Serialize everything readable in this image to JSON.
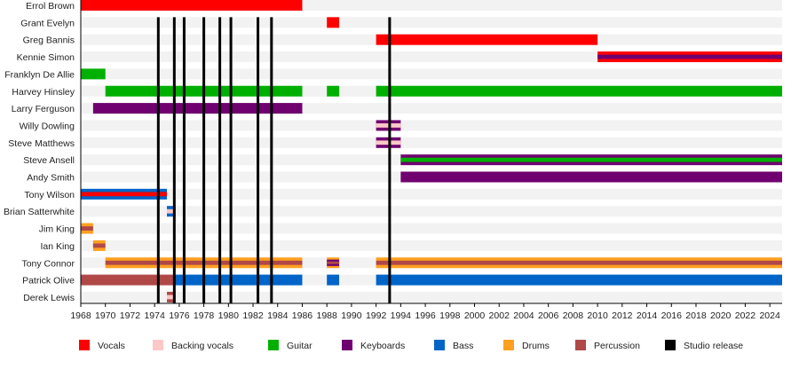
{
  "chart_data": {
    "type": "timeline",
    "xlim": [
      1968,
      2025
    ],
    "x_ticks": [
      1968,
      1970,
      1972,
      1974,
      1976,
      1978,
      1980,
      1982,
      1984,
      1986,
      1988,
      1990,
      1992,
      1994,
      1996,
      1998,
      2000,
      2002,
      2004,
      2006,
      2008,
      2010,
      2012,
      2014,
      2016,
      2018,
      2020,
      2022,
      2024
    ],
    "legend_position": "bottom",
    "roles": {
      "vocals": {
        "label": "Vocals",
        "color": "#ff0000"
      },
      "backing": {
        "label": "Backing vocals",
        "color": "#ffc8c8"
      },
      "guitar": {
        "label": "Guitar",
        "color": "#00b000"
      },
      "keyboards": {
        "label": "Keyboards",
        "color": "#700070"
      },
      "bass": {
        "label": "Bass",
        "color": "#0064c8"
      },
      "drums": {
        "label": "Drums",
        "color": "#ffa020"
      },
      "percussion": {
        "label": "Percussion",
        "color": "#b04848"
      },
      "studio": {
        "label": "Studio release",
        "color": "#000000"
      }
    },
    "legend_order": [
      "vocals",
      "backing",
      "guitar",
      "keyboards",
      "bass",
      "drums",
      "percussion",
      "studio"
    ],
    "studio_releases": [
      1974.3,
      1975.6,
      1976.4,
      1978.0,
      1979.3,
      1980.2,
      1982.4,
      1983.5,
      1993.1
    ],
    "members": [
      {
        "name": "Errol Brown",
        "spans": [
          {
            "from": 1968,
            "to": 1986,
            "roles": [
              "vocals"
            ]
          }
        ]
      },
      {
        "name": "Grant Evelyn",
        "spans": [
          {
            "from": 1988,
            "to": 1989,
            "roles": [
              "vocals"
            ]
          }
        ]
      },
      {
        "name": "Greg Bannis",
        "spans": [
          {
            "from": 1992,
            "to": 2010,
            "roles": [
              "vocals"
            ]
          }
        ]
      },
      {
        "name": "Kennie Simon",
        "spans": [
          {
            "from": 2010,
            "to": 2025,
            "roles": [
              "vocals",
              "keyboards"
            ]
          }
        ]
      },
      {
        "name": "Franklyn De Allie",
        "spans": [
          {
            "from": 1968,
            "to": 1970,
            "roles": [
              "guitar"
            ]
          }
        ]
      },
      {
        "name": "Harvey Hinsley",
        "spans": [
          {
            "from": 1970,
            "to": 1986,
            "roles": [
              "guitar"
            ]
          },
          {
            "from": 1988,
            "to": 1989,
            "roles": [
              "guitar"
            ]
          },
          {
            "from": 1992,
            "to": 2025,
            "roles": [
              "guitar"
            ]
          }
        ]
      },
      {
        "name": "Larry Ferguson",
        "spans": [
          {
            "from": 1969,
            "to": 1986,
            "roles": [
              "keyboards"
            ]
          }
        ]
      },
      {
        "name": "Willy Dowling",
        "spans": [
          {
            "from": 1992,
            "to": 1994,
            "roles": [
              "keyboards",
              "backing"
            ]
          }
        ]
      },
      {
        "name": "Steve Matthews",
        "spans": [
          {
            "from": 1992,
            "to": 1994,
            "roles": [
              "keyboards",
              "backing"
            ]
          }
        ]
      },
      {
        "name": "Steve Ansell",
        "spans": [
          {
            "from": 1994,
            "to": 2025,
            "roles": [
              "keyboards",
              "guitar"
            ]
          }
        ]
      },
      {
        "name": "Andy Smith",
        "spans": [
          {
            "from": 1994,
            "to": 2025,
            "roles": [
              "keyboards"
            ]
          }
        ]
      },
      {
        "name": "Tony Wilson",
        "spans": [
          {
            "from": 1968,
            "to": 1975,
            "roles": [
              "bass",
              "vocals"
            ]
          }
        ]
      },
      {
        "name": "Brian Satterwhite",
        "spans": [
          {
            "from": 1975,
            "to": 1975.7,
            "roles": [
              "bass",
              "backing"
            ]
          }
        ]
      },
      {
        "name": "Jim King",
        "spans": [
          {
            "from": 1968,
            "to": 1969,
            "roles": [
              "drums",
              "percussion"
            ]
          }
        ]
      },
      {
        "name": "Ian King",
        "spans": [
          {
            "from": 1969,
            "to": 1970,
            "roles": [
              "drums",
              "percussion"
            ]
          }
        ]
      },
      {
        "name": "Tony Connor",
        "spans": [
          {
            "from": 1970,
            "to": 1986,
            "roles": [
              "drums",
              "percussion"
            ]
          },
          {
            "from": 1988,
            "to": 1989,
            "roles": [
              "drums",
              "keyboards",
              "percussion"
            ]
          },
          {
            "from": 1992,
            "to": 2025,
            "roles": [
              "drums",
              "percussion"
            ]
          }
        ]
      },
      {
        "name": "Patrick Olive",
        "spans": [
          {
            "from": 1968,
            "to": 1975.6,
            "roles": [
              "percussion"
            ]
          },
          {
            "from": 1975.6,
            "to": 1986,
            "roles": [
              "bass"
            ]
          },
          {
            "from": 1988,
            "to": 1989,
            "roles": [
              "bass"
            ]
          },
          {
            "from": 1992,
            "to": 2025,
            "roles": [
              "bass"
            ]
          }
        ]
      },
      {
        "name": "Derek Lewis",
        "spans": [
          {
            "from": 1975,
            "to": 1975.7,
            "roles": [
              "percussion",
              "backing"
            ]
          }
        ]
      }
    ]
  }
}
